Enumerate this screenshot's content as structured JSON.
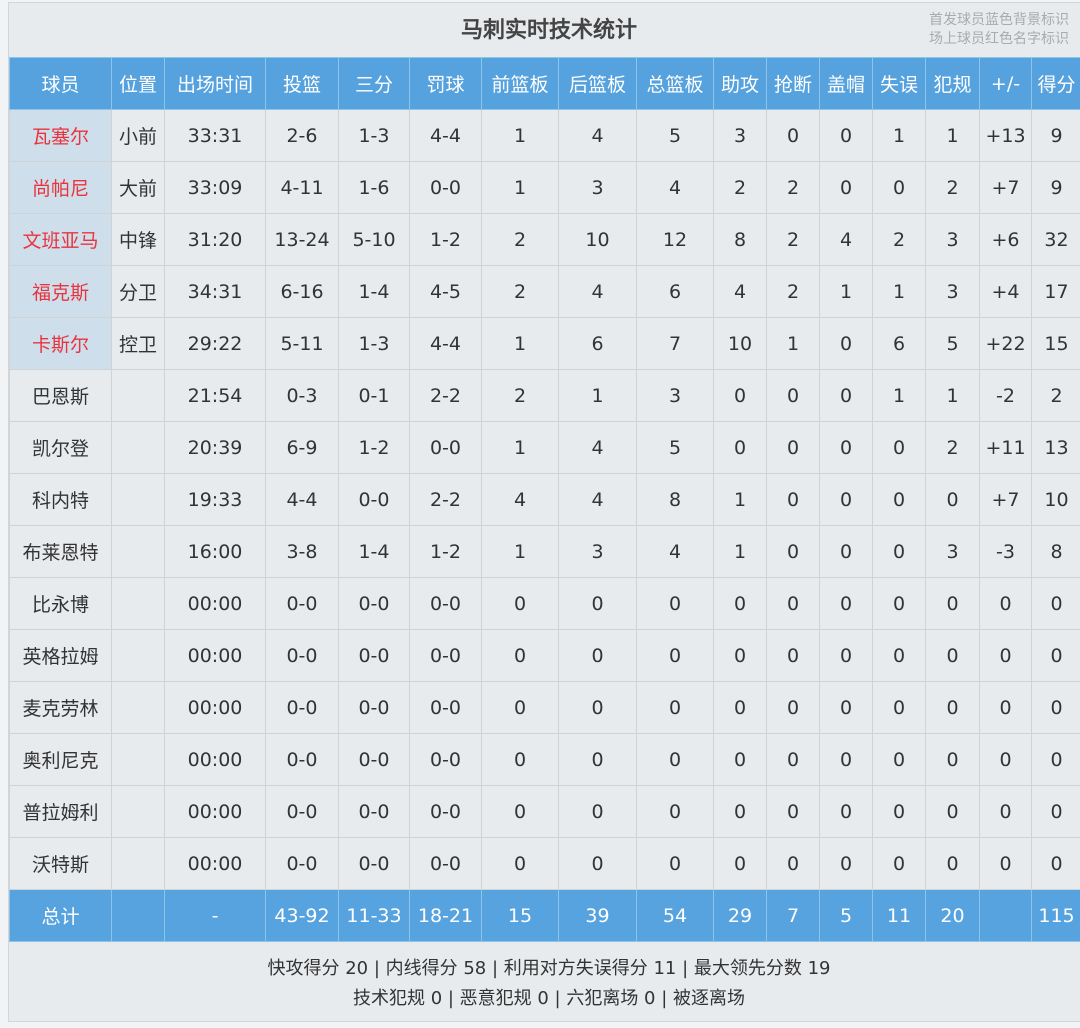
{
  "title": "马刺实时技术统计",
  "legend": [
    "首发球员蓝色背景标识",
    "场上球员红色名字标识"
  ],
  "columns": [
    "球员",
    "位置",
    "出场时间",
    "投篮",
    "三分",
    "罚球",
    "前篮板",
    "后篮板",
    "总篮板",
    "助攻",
    "抢断",
    "盖帽",
    "失误",
    "犯规",
    "+/-",
    "得分"
  ],
  "rows": [
    {
      "starter": true,
      "oncourt": true,
      "cells": [
        "瓦塞尔",
        "小前",
        "33:31",
        "2-6",
        "1-3",
        "4-4",
        "1",
        "4",
        "5",
        "3",
        "0",
        "0",
        "1",
        "1",
        "+13",
        "9"
      ]
    },
    {
      "starter": true,
      "oncourt": true,
      "cells": [
        "尚帕尼",
        "大前",
        "33:09",
        "4-11",
        "1-6",
        "0-0",
        "1",
        "3",
        "4",
        "2",
        "2",
        "0",
        "0",
        "2",
        "+7",
        "9"
      ]
    },
    {
      "starter": true,
      "oncourt": true,
      "cells": [
        "文班亚马",
        "中锋",
        "31:20",
        "13-24",
        "5-10",
        "1-2",
        "2",
        "10",
        "12",
        "8",
        "2",
        "4",
        "2",
        "3",
        "+6",
        "32"
      ]
    },
    {
      "starter": true,
      "oncourt": true,
      "cells": [
        "福克斯",
        "分卫",
        "34:31",
        "6-16",
        "1-4",
        "4-5",
        "2",
        "4",
        "6",
        "4",
        "2",
        "1",
        "1",
        "3",
        "+4",
        "17"
      ]
    },
    {
      "starter": true,
      "oncourt": true,
      "cells": [
        "卡斯尔",
        "控卫",
        "29:22",
        "5-11",
        "1-3",
        "4-4",
        "1",
        "6",
        "7",
        "10",
        "1",
        "0",
        "6",
        "5",
        "+22",
        "15"
      ]
    },
    {
      "starter": false,
      "oncourt": false,
      "cells": [
        "巴恩斯",
        "",
        "21:54",
        "0-3",
        "0-1",
        "2-2",
        "2",
        "1",
        "3",
        "0",
        "0",
        "0",
        "1",
        "1",
        "-2",
        "2"
      ]
    },
    {
      "starter": false,
      "oncourt": false,
      "cells": [
        "凯尔登",
        "",
        "20:39",
        "6-9",
        "1-2",
        "0-0",
        "1",
        "4",
        "5",
        "0",
        "0",
        "0",
        "0",
        "2",
        "+11",
        "13"
      ]
    },
    {
      "starter": false,
      "oncourt": false,
      "cells": [
        "科内特",
        "",
        "19:33",
        "4-4",
        "0-0",
        "2-2",
        "4",
        "4",
        "8",
        "1",
        "0",
        "0",
        "0",
        "0",
        "+7",
        "10"
      ]
    },
    {
      "starter": false,
      "oncourt": false,
      "cells": [
        "布莱恩特",
        "",
        "16:00",
        "3-8",
        "1-4",
        "1-2",
        "1",
        "3",
        "4",
        "1",
        "0",
        "0",
        "0",
        "3",
        "-3",
        "8"
      ]
    },
    {
      "starter": false,
      "oncourt": false,
      "cells": [
        "比永博",
        "",
        "00:00",
        "0-0",
        "0-0",
        "0-0",
        "0",
        "0",
        "0",
        "0",
        "0",
        "0",
        "0",
        "0",
        "0",
        "0"
      ]
    },
    {
      "starter": false,
      "oncourt": false,
      "cells": [
        "英格拉姆",
        "",
        "00:00",
        "0-0",
        "0-0",
        "0-0",
        "0",
        "0",
        "0",
        "0",
        "0",
        "0",
        "0",
        "0",
        "0",
        "0"
      ]
    },
    {
      "starter": false,
      "oncourt": false,
      "cells": [
        "麦克劳林",
        "",
        "00:00",
        "0-0",
        "0-0",
        "0-0",
        "0",
        "0",
        "0",
        "0",
        "0",
        "0",
        "0",
        "0",
        "0",
        "0"
      ]
    },
    {
      "starter": false,
      "oncourt": false,
      "cells": [
        "奥利尼克",
        "",
        "00:00",
        "0-0",
        "0-0",
        "0-0",
        "0",
        "0",
        "0",
        "0",
        "0",
        "0",
        "0",
        "0",
        "0",
        "0"
      ]
    },
    {
      "starter": false,
      "oncourt": false,
      "cells": [
        "普拉姆利",
        "",
        "00:00",
        "0-0",
        "0-0",
        "0-0",
        "0",
        "0",
        "0",
        "0",
        "0",
        "0",
        "0",
        "0",
        "0",
        "0"
      ]
    },
    {
      "starter": false,
      "oncourt": false,
      "cells": [
        "沃特斯",
        "",
        "00:00",
        "0-0",
        "0-0",
        "0-0",
        "0",
        "0",
        "0",
        "0",
        "0",
        "0",
        "0",
        "0",
        "0",
        "0"
      ]
    }
  ],
  "total": [
    "总计",
    "",
    "-",
    "43-92",
    "11-33",
    "18-21",
    "15",
    "39",
    "54",
    "29",
    "7",
    "5",
    "11",
    "20",
    "",
    "115"
  ],
  "footer": [
    "快攻得分 20 | 内线得分 58 | 利用对方失误得分 11 | 最大领先分数 19",
    "技术犯规 0 | 恶意犯规 0 | 六犯离场 0 | 被逐离场"
  ],
  "colors": {
    "header": "#55a2de",
    "starter_bg": "#cfdeeb",
    "oncourt_name": "#e8343e"
  }
}
